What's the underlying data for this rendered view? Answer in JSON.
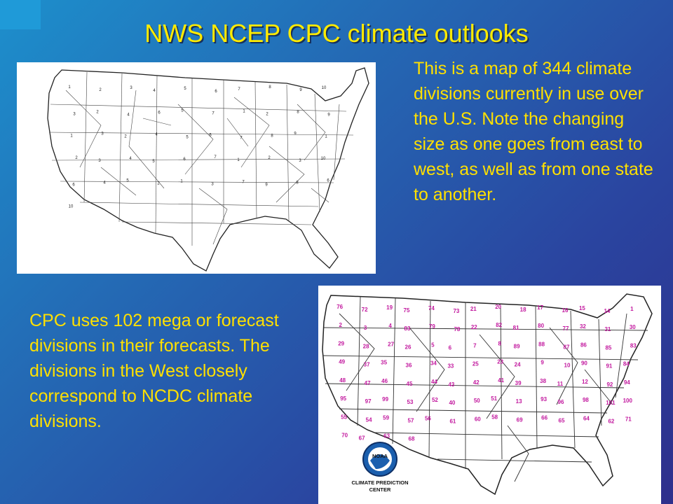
{
  "slide": {
    "title": "NWS NCEP CPC climate outlooks",
    "text_top": "This is a map of 344 climate divisions currently in use over the U.S. Note the changing size as one goes from east to west, as well as from one state to another.",
    "text_bottom": "CPC uses 102 mega or forecast divisions in their forecasts. The divisions in the West closely correspond to NCDC climate divisions."
  },
  "map1": {
    "labels": [
      "1",
      "2",
      "3",
      "4",
      "5",
      "6",
      "7",
      "8",
      "9",
      "10",
      "3",
      "2",
      "4",
      "6",
      "5",
      "7",
      "1",
      "2",
      "8",
      "9",
      "1",
      "3",
      "2",
      "4",
      "5",
      "6",
      "7",
      "8",
      "9",
      "1",
      "2",
      "3",
      "4",
      "5",
      "6",
      "7",
      "1",
      "2",
      "3",
      "10",
      "6",
      "4",
      "5",
      "2",
      "1",
      "3",
      "7",
      "9",
      "8",
      "6",
      "10"
    ]
  },
  "map2": {
    "labels": [
      "76",
      "72",
      "19",
      "75",
      "74",
      "73",
      "21",
      "20",
      "18",
      "17",
      "16",
      "15",
      "14",
      "1",
      "2",
      "3",
      "4",
      "83",
      "79",
      "78",
      "22",
      "82",
      "81",
      "80",
      "77",
      "32",
      "31",
      "30",
      "29",
      "28",
      "27",
      "26",
      "5",
      "6",
      "7",
      "8",
      "89",
      "88",
      "87",
      "86",
      "85",
      "83",
      "49",
      "37",
      "35",
      "36",
      "34",
      "33",
      "25",
      "23",
      "24",
      "9",
      "10",
      "90",
      "91",
      "84",
      "48",
      "47",
      "46",
      "45",
      "44",
      "43",
      "42",
      "41",
      "39",
      "38",
      "11",
      "12",
      "92",
      "94",
      "95",
      "97",
      "99",
      "53",
      "52",
      "40",
      "50",
      "51",
      "13",
      "93",
      "96",
      "98",
      "101",
      "100",
      "55",
      "54",
      "59",
      "57",
      "56",
      "61",
      "60",
      "58",
      "69",
      "66",
      "65",
      "64",
      "62",
      "71",
      "70",
      "67",
      "63",
      "68"
    ],
    "logo_text": "NOAA",
    "caption_line1": "CLIMATE PREDICTION",
    "caption_line2": "CENTER"
  }
}
